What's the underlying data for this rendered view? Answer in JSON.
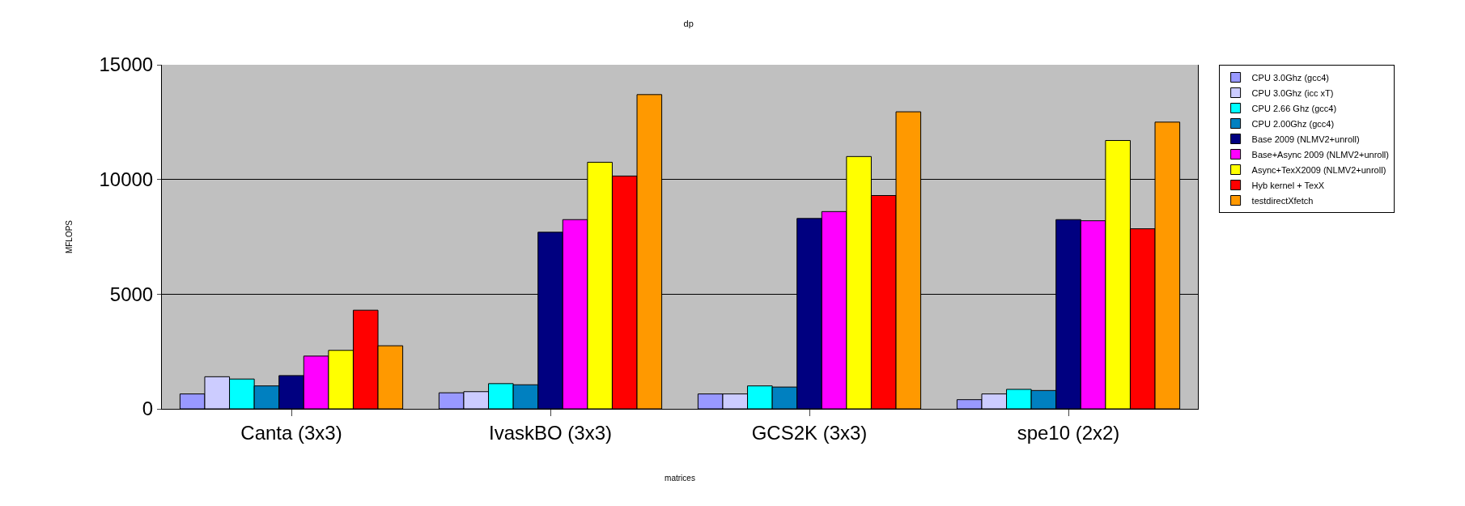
{
  "chart_data": {
    "type": "bar",
    "title": "dp",
    "xlabel": "matrices",
    "ylabel": "MFLOPS",
    "categories": [
      "Canta (3x3)",
      "IvaskBO (3x3)",
      "GCS2K (3x3)",
      "spe10 (2x2)"
    ],
    "series": [
      {
        "name": "CPU 3.0Ghz (gcc4)",
        "color": "#9999ff",
        "values": [
          650,
          700,
          650,
          400
        ]
      },
      {
        "name": "CPU 3.0Ghz (icc xT)",
        "color": "#ccccff",
        "values": [
          1400,
          750,
          650,
          650
        ]
      },
      {
        "name": "CPU 2.66 Ghz (gcc4)",
        "color": "#00ffff",
        "values": [
          1300,
          1100,
          1000,
          850
        ]
      },
      {
        "name": "CPU 2.00Ghz (gcc4)",
        "color": "#0080c0",
        "values": [
          1000,
          1050,
          950,
          800
        ]
      },
      {
        "name": "Base 2009 (NLMV2+unroll)",
        "color": "#000080",
        "values": [
          1450,
          7700,
          8300,
          8250
        ]
      },
      {
        "name": "Base+Async 2009 (NLMV2+unroll)",
        "color": "#ff00ff",
        "values": [
          2300,
          8250,
          8600,
          8200
        ]
      },
      {
        "name": "Async+TexX2009 (NLMV2+unroll)",
        "color": "#ffff00",
        "values": [
          2550,
          10750,
          11000,
          11700
        ]
      },
      {
        "name": "Hyb kernel + TexX",
        "color": "#ff0000",
        "values": [
          4300,
          10150,
          9300,
          7850
        ]
      },
      {
        "name": "testdirectXfetch",
        "color": "#ff9900",
        "values": [
          2750,
          13700,
          12950,
          12500
        ]
      }
    ],
    "ylim": [
      0,
      15000
    ],
    "yticks": [
      0,
      5000,
      10000,
      15000
    ],
    "grid": "y",
    "legend": "right"
  }
}
